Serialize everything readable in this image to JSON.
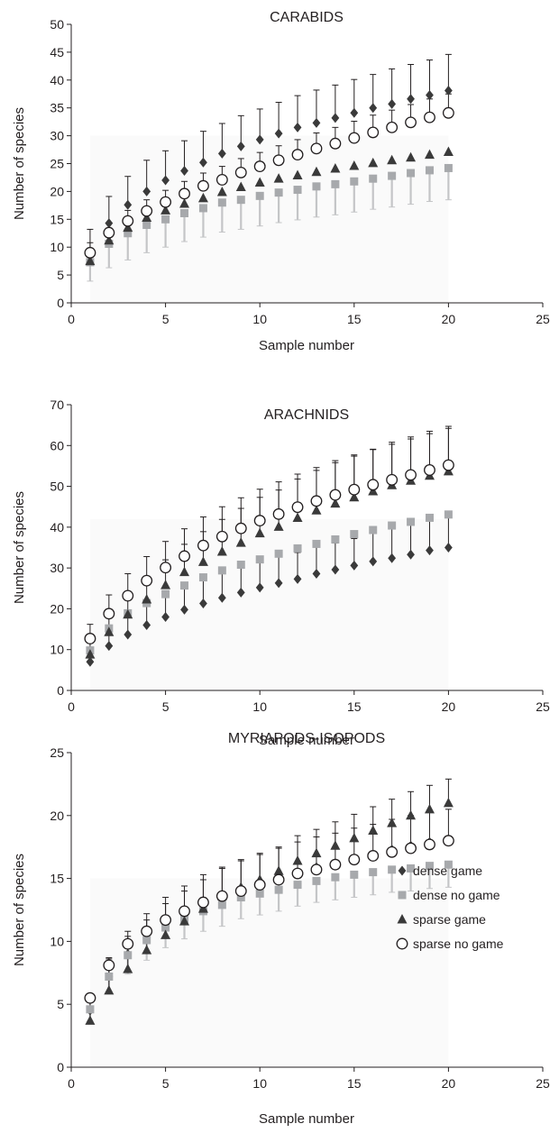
{
  "chart_data": [
    {
      "type": "scatter",
      "title": "CARABIDS",
      "xlabel": "Sample number",
      "ylabel": "Number of species",
      "xlim": [
        0,
        25
      ],
      "ylim": [
        0,
        50
      ],
      "xticks": [
        "0",
        "5",
        "10",
        "15",
        "20",
        "25"
      ],
      "yticks": [
        "0",
        "5",
        "10",
        "15",
        "20",
        "25",
        "30",
        "35",
        "40",
        "45",
        "50"
      ],
      "grid": false,
      "legend": "none",
      "x": [
        1,
        2,
        3,
        4,
        5,
        6,
        7,
        8,
        9,
        10,
        11,
        12,
        13,
        14,
        15,
        16,
        17,
        18,
        19,
        20
      ],
      "series": [
        {
          "name": "dense game",
          "marker": "diamond",
          "color": "#3a3a3a",
          "values": [
            9.2,
            14.3,
            17.6,
            20,
            22,
            23.7,
            25.2,
            26.8,
            28.1,
            29.3,
            30.4,
            31.5,
            32.3,
            33.2,
            34.1,
            35,
            35.7,
            36.6,
            37.3,
            38.1
          ],
          "err": [
            4,
            4.8,
            5.1,
            5.6,
            5.3,
            5.4,
            5.6,
            5.4,
            5.5,
            5.5,
            5.6,
            5.7,
            5.9,
            5.9,
            6,
            6,
            6.3,
            6.2,
            6.3,
            6.5
          ]
        },
        {
          "name": "dense no game",
          "marker": "square",
          "color": "#a7a9ac",
          "values": [
            7.3,
            10.6,
            12.5,
            14,
            15,
            16.1,
            17,
            18,
            18.5,
            19.2,
            19.8,
            20.3,
            20.9,
            21.3,
            21.8,
            22.3,
            22.8,
            23.3,
            23.8,
            24.2
          ],
          "err": [
            3.4,
            4.3,
            4.8,
            5,
            5,
            5.1,
            5.2,
            5.3,
            5.3,
            5.4,
            5.4,
            5.4,
            5.5,
            5.5,
            5.5,
            5.5,
            5.6,
            5.6,
            5.6,
            5.7
          ]
        },
        {
          "name": "sparse game",
          "marker": "triangle",
          "color": "#3a3a3a",
          "values": [
            7.5,
            11.2,
            13.5,
            15.3,
            16.6,
            17.8,
            18.8,
            19.9,
            20.8,
            21.6,
            22.3,
            22.9,
            23.5,
            24.1,
            24.6,
            25.1,
            25.6,
            26.1,
            26.6,
            27.1
          ],
          "err": []
        },
        {
          "name": "sparse no game",
          "marker": "circle-open",
          "color": "#231f20",
          "values": [
            9,
            12.6,
            14.7,
            16.5,
            18.1,
            19.6,
            21,
            22.1,
            23.4,
            24.5,
            25.6,
            26.6,
            27.7,
            28.6,
            29.6,
            30.6,
            31.5,
            32.4,
            33.3,
            34.1
          ],
          "err": [
            1.8,
            1.8,
            1.9,
            2,
            2.1,
            2.2,
            2.3,
            2.4,
            2.5,
            2.5,
            2.6,
            2.7,
            2.8,
            2.9,
            3,
            3.1,
            3.1,
            3.2,
            3.3,
            3.4
          ]
        }
      ]
    },
    {
      "type": "scatter",
      "title": "ARACHNIDS",
      "xlabel": "Sample number",
      "ylabel": "Number of species",
      "xlim": [
        0,
        25
      ],
      "ylim": [
        0,
        70
      ],
      "xticks": [
        "0",
        "5",
        "10",
        "15",
        "20",
        "25"
      ],
      "yticks": [
        "0",
        "10",
        "20",
        "30",
        "40",
        "50",
        "60",
        "70"
      ],
      "grid": false,
      "legend": "none",
      "x": [
        1,
        2,
        3,
        4,
        5,
        6,
        7,
        8,
        9,
        10,
        11,
        12,
        13,
        14,
        15,
        16,
        17,
        18,
        19,
        20
      ],
      "series": [
        {
          "name": "dense game",
          "marker": "diamond",
          "color": "#3a3a3a",
          "values": [
            7,
            10.9,
            13.7,
            16,
            18,
            19.8,
            21.3,
            22.7,
            24,
            25.2,
            26.3,
            27.3,
            28.6,
            29.6,
            30.6,
            31.6,
            32.4,
            33.3,
            34.3,
            35
          ],
          "err": [
            3,
            4,
            4.9,
            5.1,
            5.4,
            5.5,
            5.8,
            6.4,
            6.2,
            6.6,
            6.5,
            6.5,
            6.8,
            6.5,
            6.6,
            7.4,
            7.6,
            7.8,
            8.1,
            8
          ]
        },
        {
          "name": "dense no game",
          "marker": "square",
          "color": "#a7a9ac",
          "values": [
            9.8,
            15.2,
            18.9,
            21.4,
            23.6,
            25.7,
            27.7,
            29.4,
            30.8,
            32.1,
            33.5,
            34.8,
            35.9,
            37,
            38.3,
            39.3,
            40.4,
            41.3,
            42.3,
            43.1
          ],
          "err": []
        },
        {
          "name": "sparse game",
          "marker": "triangle",
          "color": "#3a3a3a",
          "values": [
            8.8,
            14.3,
            18.6,
            22.3,
            25.8,
            29,
            31.5,
            34,
            36.2,
            38.5,
            40.1,
            42.3,
            44.1,
            45.8,
            47.3,
            48.8,
            50.3,
            51.4,
            52.6,
            53.7
          ],
          "err": [
            3,
            3.8,
            4.5,
            5.5,
            6.2,
            6.8,
            7.4,
            7.9,
            8.4,
            8.8,
            9,
            9.5,
            9.8,
            10,
            10.1,
            10.3,
            10.5,
            10.7,
            10.9,
            11
          ]
        },
        {
          "name": "sparse no game",
          "marker": "circle-open",
          "color": "#231f20",
          "values": [
            12.7,
            18.8,
            23.2,
            26.9,
            30.1,
            32.9,
            35.5,
            37.7,
            39.7,
            41.6,
            43.2,
            44.9,
            46.4,
            47.9,
            49.2,
            50.4,
            51.6,
            52.8,
            54,
            55.2
          ],
          "err": [
            3.5,
            4.6,
            5.4,
            5.9,
            6.4,
            6.7,
            7,
            7.3,
            7.5,
            7.7,
            7.9,
            8.1,
            8.2,
            8.4,
            8.5,
            8.6,
            8.7,
            8.8,
            8.9,
            9
          ]
        }
      ]
    },
    {
      "type": "scatter",
      "title": "MYRIAPODS-ISOPODS",
      "xlabel": "Sample number",
      "ylabel": "Number of species",
      "xlim": [
        0,
        25
      ],
      "ylim": [
        0,
        25
      ],
      "xticks": [
        "0",
        "5",
        "10",
        "15",
        "20",
        "25"
      ],
      "yticks": [
        "0",
        "5",
        "10",
        "15",
        "20",
        "25"
      ],
      "grid": false,
      "legend": "bottom-right",
      "x": [
        1,
        2,
        3,
        4,
        5,
        6,
        7,
        8,
        9,
        10,
        11,
        12,
        13,
        14,
        15,
        16,
        17,
        18,
        19,
        20
      ],
      "series": [
        {
          "name": "dense game",
          "marker": "diamond",
          "color": "#3a3a3a",
          "values": [
            4.5,
            7.2,
            9,
            10.2,
            11.3,
            12.1,
            12.9,
            13.5,
            14.1,
            14.6,
            15,
            15.5,
            15.9,
            16.2,
            16.6,
            16.9,
            17.3,
            17.6,
            17.9,
            18.1
          ],
          "err": [
            1,
            1.5,
            1.8,
            2,
            2.2,
            2.3,
            2.4,
            2.4,
            2.4,
            2.4,
            2.4,
            2.4,
            2.4,
            2.4,
            2.4,
            2.4,
            2.4,
            2.4,
            2.4,
            2.4
          ]
        },
        {
          "name": "dense no game",
          "marker": "square",
          "color": "#a7a9ac",
          "values": [
            4.6,
            7.2,
            8.9,
            10.1,
            11.1,
            11.8,
            12.4,
            12.9,
            13.5,
            13.8,
            14.1,
            14.5,
            14.8,
            15.1,
            15.3,
            15.5,
            15.7,
            15.8,
            16,
            16.1
          ],
          "err": [
            0.9,
            1.3,
            1.5,
            1.6,
            1.6,
            1.6,
            1.6,
            1.7,
            1.7,
            1.7,
            1.7,
            1.7,
            1.7,
            1.8,
            1.8,
            1.8,
            1.8,
            1.8,
            1.8,
            1.8
          ]
        },
        {
          "name": "sparse game",
          "marker": "triangle",
          "color": "#3a3a3a",
          "values": [
            3.7,
            6.1,
            7.8,
            9.3,
            10.5,
            11.6,
            12.6,
            13.6,
            14.3,
            14.9,
            15.6,
            16.4,
            17,
            17.6,
            18.2,
            18.8,
            19.4,
            20,
            20.5,
            21
          ],
          "err": [
            1.9,
            2.5,
            2.6,
            2.4,
            2.5,
            2.4,
            2.3,
            2.2,
            2.1,
            2,
            1.9,
            2,
            1.9,
            1.9,
            1.9,
            1.9,
            1.9,
            1.9,
            1.9,
            1.9
          ]
        },
        {
          "name": "sparse no game",
          "marker": "circle-open",
          "color": "#231f20",
          "values": [
            5.5,
            8.1,
            9.8,
            10.8,
            11.7,
            12.4,
            13.1,
            13.6,
            14,
            14.5,
            14.9,
            15.4,
            15.7,
            16.1,
            16.5,
            16.8,
            17.1,
            17.4,
            17.7,
            18
          ],
          "err": []
        }
      ]
    }
  ]
}
